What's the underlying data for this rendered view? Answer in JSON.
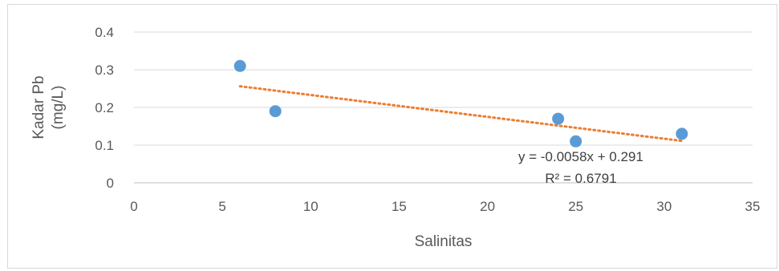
{
  "chart_data": {
    "type": "scatter",
    "title": "",
    "xlabel": "Salinitas",
    "ylabel_lines": [
      "Kadar Pb",
      "(mg/L)"
    ],
    "xlim": [
      0,
      35
    ],
    "ylim": [
      0,
      0.4
    ],
    "x_ticks": [
      0,
      5,
      10,
      15,
      20,
      25,
      30,
      35
    ],
    "x_tick_labels": [
      "0",
      "5",
      "10",
      "15",
      "20",
      "25",
      "30",
      "35"
    ],
    "y_ticks": [
      0,
      0.1,
      0.2,
      0.3,
      0.4
    ],
    "y_tick_labels": [
      "0",
      "0.1",
      "0.2",
      "0.3",
      "0.4"
    ],
    "grid": "horizontal",
    "legend": "none",
    "series": [
      {
        "points": [
          {
            "x": 6,
            "y": 0.31
          },
          {
            "x": 8,
            "y": 0.19
          },
          {
            "x": 24,
            "y": 0.17
          },
          {
            "x": 25,
            "y": 0.11
          },
          {
            "x": 31,
            "y": 0.13
          }
        ],
        "color": "#5b9bd5"
      }
    ],
    "trendline": {
      "slope": -0.0058,
      "intercept": 0.291,
      "x_range": [
        6,
        31
      ],
      "color": "#ed7d31",
      "style": "dotted",
      "equation_label": "y = -0.0058x + 0.291",
      "r2_label": "R² = 0.6791"
    }
  }
}
